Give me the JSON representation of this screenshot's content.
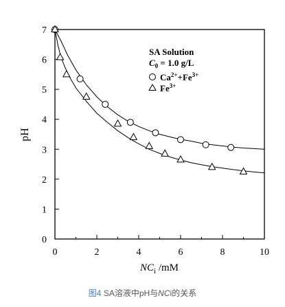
{
  "chart_data": {
    "type": "scatter",
    "ylabel": "pH",
    "xlabel_symbol": "NC",
    "xlabel_subscript": "i",
    "xlabel_unit": " /mM",
    "xlim": [
      0,
      10
    ],
    "ylim": [
      0,
      7
    ],
    "x_ticks": [
      "0",
      "2",
      "4",
      "6",
      "8",
      "10"
    ],
    "y_ticks": [
      "0",
      "1",
      "2",
      "3",
      "4",
      "5",
      "6",
      "7"
    ],
    "grid": false,
    "legend": {
      "position": "top-right",
      "title": "SA Solution",
      "conc_symbol": "C",
      "conc_subscript": "0",
      "conc_value": " = 1.0 g/L",
      "entry1_base": "Ca",
      "entry1_sup": "2+",
      "entry1_mid": "+Fe",
      "entry1_sup2": "3+",
      "entry2_base": "Fe",
      "entry2_sup": "3+"
    },
    "series": [
      {
        "marker": "circle",
        "points": [
          [
            0,
            7.0
          ],
          [
            1.2,
            5.35
          ],
          [
            2.4,
            4.5
          ],
          [
            3.6,
            3.9
          ],
          [
            4.8,
            3.55
          ],
          [
            6.0,
            3.32
          ],
          [
            7.2,
            3.15
          ],
          [
            8.4,
            3.06
          ]
        ],
        "fit": [
          [
            0,
            7.0
          ],
          [
            0.3,
            6.6
          ],
          [
            0.6,
            6.15
          ],
          [
            1.0,
            5.65
          ],
          [
            1.5,
            5.15
          ],
          [
            2.0,
            4.75
          ],
          [
            2.5,
            4.42
          ],
          [
            3.0,
            4.15
          ],
          [
            3.5,
            3.93
          ],
          [
            4.0,
            3.76
          ],
          [
            4.5,
            3.62
          ],
          [
            5.0,
            3.5
          ],
          [
            5.5,
            3.41
          ],
          [
            6.0,
            3.33
          ],
          [
            6.5,
            3.27
          ],
          [
            7.0,
            3.2
          ],
          [
            7.5,
            3.15
          ],
          [
            8.0,
            3.11
          ],
          [
            8.5,
            3.07
          ],
          [
            9.0,
            3.04
          ],
          [
            9.5,
            3.02
          ],
          [
            10.0,
            3.0
          ]
        ]
      },
      {
        "marker": "triangle",
        "points": [
          [
            0,
            7.0
          ],
          [
            0.25,
            6.07
          ],
          [
            0.55,
            5.5
          ],
          [
            1.5,
            4.75
          ],
          [
            3.0,
            3.85
          ],
          [
            3.75,
            3.4
          ],
          [
            4.5,
            3.1
          ],
          [
            5.25,
            2.85
          ],
          [
            6.0,
            2.65
          ],
          [
            7.5,
            2.4
          ],
          [
            9.0,
            2.25
          ]
        ],
        "fit": [
          [
            0,
            7.0
          ],
          [
            0.15,
            6.45
          ],
          [
            0.3,
            6.05
          ],
          [
            0.5,
            5.7
          ],
          [
            0.75,
            5.35
          ],
          [
            1.0,
            5.05
          ],
          [
            1.5,
            4.6
          ],
          [
            2.0,
            4.2
          ],
          [
            2.5,
            3.9
          ],
          [
            3.0,
            3.62
          ],
          [
            3.5,
            3.38
          ],
          [
            4.0,
            3.18
          ],
          [
            4.5,
            3.0
          ],
          [
            5.0,
            2.86
          ],
          [
            5.5,
            2.74
          ],
          [
            6.0,
            2.64
          ],
          [
            6.5,
            2.55
          ],
          [
            7.0,
            2.48
          ],
          [
            7.5,
            2.42
          ],
          [
            8.0,
            2.37
          ],
          [
            8.5,
            2.32
          ],
          [
            9.0,
            2.28
          ],
          [
            9.5,
            2.24
          ],
          [
            10.0,
            2.21
          ]
        ]
      }
    ]
  },
  "caption": {
    "label": "图4",
    "text": " SA溶液中pH与",
    "symbol": "NC",
    "subscript": "i",
    "suffix": "的关系"
  }
}
